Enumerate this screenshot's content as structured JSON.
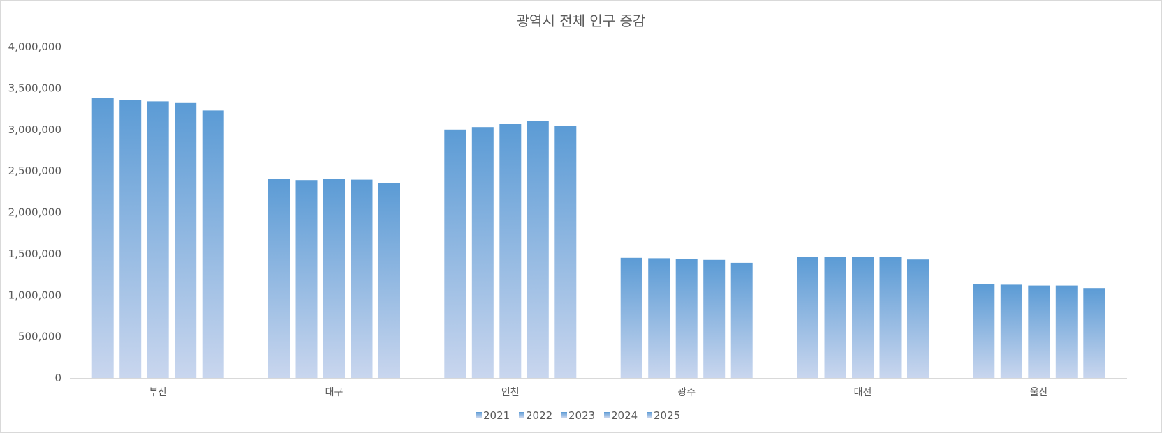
{
  "chart_data": {
    "type": "bar",
    "title": "광역시 전체 인구 증감",
    "xlabel": "",
    "ylabel": "",
    "ylim": [
      0,
      4000000
    ],
    "y_ticks": [
      "0",
      "500,000",
      "1,000,000",
      "1,500,000",
      "2,000,000",
      "2,500,000",
      "3,000,000",
      "3,500,000",
      "4,000,000"
    ],
    "y_tick_values": [
      0,
      500000,
      1000000,
      1500000,
      2000000,
      2500000,
      3000000,
      3500000,
      4000000
    ],
    "categories": [
      "부산",
      "대구",
      "인천",
      "광주",
      "대전",
      "울산"
    ],
    "series": [
      {
        "name": "2021",
        "values": [
          3380000,
          2400000,
          3000000,
          1450000,
          1460000,
          1130000
        ]
      },
      {
        "name": "2022",
        "values": [
          3360000,
          2390000,
          3030000,
          1445000,
          1460000,
          1125000
        ]
      },
      {
        "name": "2023",
        "values": [
          3340000,
          2400000,
          3065000,
          1440000,
          1460000,
          1115000
        ]
      },
      {
        "name": "2024",
        "values": [
          3320000,
          2395000,
          3100000,
          1425000,
          1460000,
          1115000
        ]
      },
      {
        "name": "2025",
        "values": [
          3230000,
          2350000,
          3045000,
          1390000,
          1430000,
          1085000
        ]
      }
    ],
    "grid": false,
    "legend_position": "bottom",
    "colors": {
      "bar_top": "#5b9bd5",
      "bar_bottom": "#c9d6ee",
      "axis_line": "#d9d9d9",
      "text": "#595959"
    }
  }
}
